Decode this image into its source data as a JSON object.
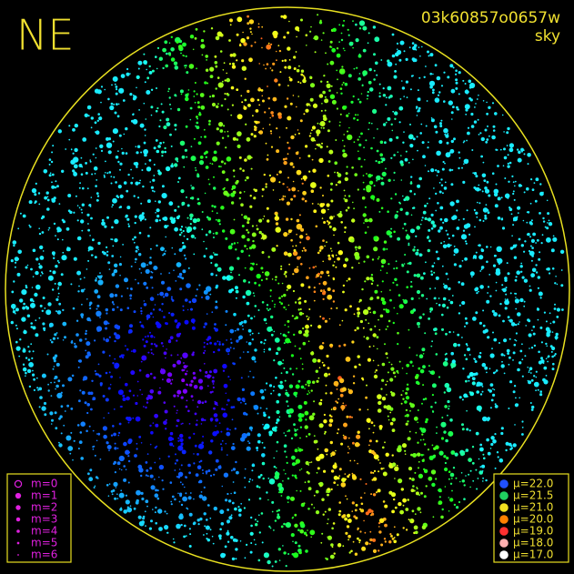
{
  "header": {
    "corner_label": "NE",
    "image_id": "03k60857o0657w",
    "subtitle": "sky"
  },
  "magnitude_legend": {
    "items": [
      "m=0",
      "m=1",
      "m=2",
      "m=3",
      "m=4",
      "m=5",
      "m=6"
    ],
    "color": "#e020e0"
  },
  "brightness_legend": {
    "items": [
      {
        "label": "μ=22.0",
        "color": "#2050ff"
      },
      {
        "label": "μ=21.5",
        "color": "#20d060"
      },
      {
        "label": "μ=21.0",
        "color": "#f0e020"
      },
      {
        "label": "μ=20.0",
        "color": "#ff8000"
      },
      {
        "label": "μ=19.0",
        "color": "#ff3030"
      },
      {
        "label": "μ=18.0",
        "color": "#ffb0b0"
      },
      {
        "label": "μ=17.0",
        "color": "#ffffff"
      }
    ]
  }
}
